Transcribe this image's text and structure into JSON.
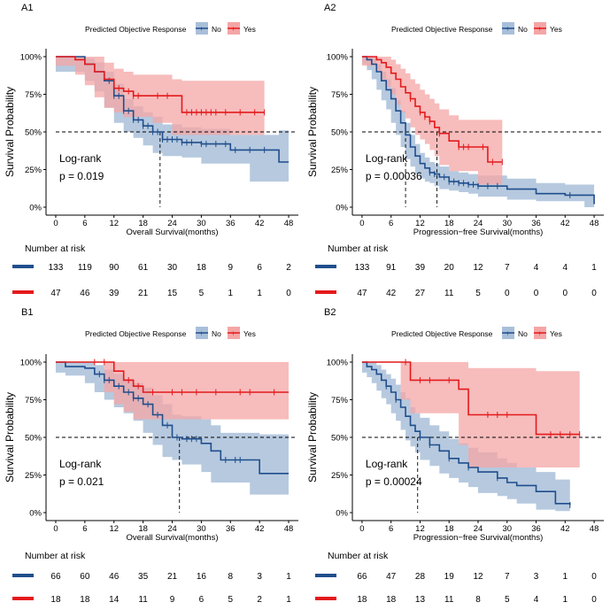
{
  "colors": {
    "no": "#1f4e8c",
    "yes": "#e41a1c",
    "no_band": "#a9bfd9",
    "yes_band": "#f4a6a6"
  },
  "legend": {
    "title": "Predicted Objective Response",
    "no": "No",
    "yes": "Yes"
  },
  "risk_title": "Number at risk",
  "chart_data": [
    {
      "panel": "A1",
      "type": "line",
      "ylabel": "Survival Probability",
      "xlabel": "Overall Survival(months)",
      "xlim": [
        -2,
        50
      ],
      "xticks": [
        0,
        6,
        12,
        18,
        24,
        30,
        36,
        42,
        48
      ],
      "ylim": [
        0,
        1
      ],
      "yticks": [
        "0%",
        "25%",
        "50%",
        "75%",
        "100%"
      ],
      "logrank": "Log-rank",
      "pvalue": "p = 0.019",
      "median_no": 21.5,
      "series": [
        {
          "name": "No",
          "x": [
            0,
            6,
            8,
            10,
            12,
            14,
            16,
            18,
            20,
            22,
            26,
            30,
            36,
            40,
            46,
            48
          ],
          "y": [
            1,
            0.95,
            0.9,
            0.84,
            0.74,
            0.64,
            0.58,
            0.54,
            0.5,
            0.45,
            0.43,
            0.42,
            0.38,
            0.38,
            0.3,
            0.3
          ],
          "lo": [
            1,
            0.9,
            0.84,
            0.77,
            0.66,
            0.56,
            0.5,
            0.46,
            0.41,
            0.36,
            0.34,
            0.33,
            0.29,
            0.29,
            0.17,
            0.17
          ],
          "hi": [
            1,
            0.99,
            0.96,
            0.9,
            0.82,
            0.72,
            0.67,
            0.63,
            0.6,
            0.55,
            0.53,
            0.52,
            0.48,
            0.48,
            0.51,
            0.51
          ],
          "censor_x": [
            11,
            12,
            13,
            14,
            15,
            16,
            17,
            18,
            19,
            20,
            21,
            22,
            23,
            24,
            25,
            26,
            27,
            28,
            30,
            31,
            33,
            35,
            37,
            40,
            43
          ]
        },
        {
          "name": "Yes",
          "x": [
            0,
            4,
            6,
            8,
            10,
            12,
            14,
            16,
            20,
            24,
            26,
            30,
            36,
            40,
            43
          ],
          "y": [
            1,
            0.98,
            0.95,
            0.9,
            0.85,
            0.79,
            0.77,
            0.74,
            0.74,
            0.74,
            0.63,
            0.63,
            0.63,
            0.63,
            0.63
          ],
          "lo": [
            1,
            0.94,
            0.88,
            0.81,
            0.73,
            0.66,
            0.63,
            0.6,
            0.6,
            0.56,
            0.48,
            0.48,
            0.48,
            0.48,
            0.48
          ],
          "hi": [
            1,
            1,
            1,
            1,
            0.96,
            0.92,
            0.9,
            0.88,
            0.88,
            0.85,
            0.84,
            0.84,
            0.84,
            0.84,
            0.84
          ],
          "censor_x": [
            13,
            15,
            16,
            17,
            21,
            23,
            27,
            28,
            29,
            30,
            31,
            32,
            33,
            35,
            38,
            41,
            43
          ]
        }
      ],
      "risk": {
        "no": [
          "133",
          "119",
          "90",
          "61",
          "30",
          "18",
          "9",
          "6",
          "2"
        ],
        "yes": [
          "47",
          "46",
          "39",
          "21",
          "15",
          "5",
          "1",
          "1",
          "0"
        ]
      }
    },
    {
      "panel": "A2",
      "type": "line",
      "ylabel": "Survival Probability",
      "xlabel": "Progression−free Survival(months)",
      "xlim": [
        -2,
        50
      ],
      "xticks": [
        0,
        6,
        12,
        18,
        24,
        30,
        36,
        42,
        48
      ],
      "ylim": [
        0,
        1
      ],
      "yticks": [
        "0%",
        "25%",
        "50%",
        "75%",
        "100%"
      ],
      "logrank": "Log-rank",
      "pvalue": "p = 0.00036",
      "median_no": 9.0,
      "median_yes": 15.5,
      "series": [
        {
          "name": "No",
          "x": [
            0,
            1,
            2,
            3,
            4,
            5,
            6,
            7,
            8,
            9,
            10,
            11,
            12,
            13,
            14,
            15,
            16,
            18,
            20,
            22,
            24,
            30,
            36,
            42,
            46,
            48
          ],
          "y": [
            1,
            0.98,
            0.95,
            0.9,
            0.84,
            0.78,
            0.72,
            0.64,
            0.56,
            0.48,
            0.4,
            0.34,
            0.29,
            0.26,
            0.23,
            0.22,
            0.2,
            0.17,
            0.16,
            0.15,
            0.14,
            0.12,
            0.09,
            0.08,
            0.08,
            0.02
          ],
          "lo": [
            1,
            0.95,
            0.91,
            0.85,
            0.78,
            0.71,
            0.65,
            0.56,
            0.48,
            0.4,
            0.32,
            0.27,
            0.22,
            0.19,
            0.17,
            0.16,
            0.14,
            0.12,
            0.11,
            0.1,
            0.09,
            0.07,
            0.05,
            0.04,
            0.04,
            0
          ],
          "hi": [
            1,
            1,
            0.99,
            0.95,
            0.9,
            0.85,
            0.79,
            0.71,
            0.64,
            0.56,
            0.48,
            0.42,
            0.36,
            0.33,
            0.3,
            0.29,
            0.27,
            0.24,
            0.23,
            0.22,
            0.21,
            0.19,
            0.16,
            0.15,
            0.15,
            0.1
          ],
          "censor_x": [
            14,
            15,
            17,
            18,
            19,
            20,
            21,
            22,
            23,
            24,
            26,
            28,
            43
          ]
        },
        {
          "name": "Yes",
          "x": [
            0,
            3,
            4,
            5,
            6,
            7,
            8,
            9,
            10,
            11,
            12,
            13,
            14,
            15,
            16,
            18,
            20,
            22,
            24,
            26,
            29
          ],
          "y": [
            1,
            0.98,
            0.96,
            0.93,
            0.89,
            0.85,
            0.8,
            0.76,
            0.72,
            0.67,
            0.63,
            0.6,
            0.57,
            0.53,
            0.49,
            0.44,
            0.4,
            0.4,
            0.4,
            0.3,
            0.3
          ],
          "lo": [
            1,
            0.94,
            0.9,
            0.85,
            0.8,
            0.75,
            0.68,
            0.63,
            0.59,
            0.53,
            0.48,
            0.45,
            0.42,
            0.38,
            0.34,
            0.28,
            0.24,
            0.24,
            0.24,
            0.15,
            0.15
          ],
          "hi": [
            1,
            1,
            1,
            1,
            0.98,
            0.95,
            0.92,
            0.89,
            0.85,
            0.82,
            0.78,
            0.75,
            0.72,
            0.69,
            0.65,
            0.61,
            0.58,
            0.58,
            0.58,
            0.58,
            0.58
          ],
          "censor_x": [
            10,
            12,
            13,
            14,
            16,
            20,
            21,
            22,
            25,
            27,
            29
          ]
        }
      ],
      "risk": {
        "no": [
          "133",
          "91",
          "39",
          "20",
          "12",
          "7",
          "4",
          "4",
          "1"
        ],
        "yes": [
          "47",
          "42",
          "27",
          "11",
          "5",
          "0",
          "0",
          "0",
          "0"
        ]
      }
    },
    {
      "panel": "B1",
      "type": "line",
      "ylabel": "Survival Probability",
      "xlabel": "Overall Survival(months)",
      "xlim": [
        -2,
        50
      ],
      "xticks": [
        0,
        6,
        12,
        18,
        24,
        30,
        36,
        42,
        48
      ],
      "ylim": [
        0,
        1
      ],
      "yticks": [
        "0%",
        "25%",
        "50%",
        "75%",
        "100%"
      ],
      "logrank": "Log-rank",
      "pvalue": "p = 0.021",
      "median_no": 25.5,
      "series": [
        {
          "name": "No",
          "x": [
            0,
            2,
            6,
            8,
            10,
            12,
            14,
            16,
            18,
            20,
            22,
            24,
            26,
            30,
            32,
            34,
            36,
            40,
            42,
            48
          ],
          "y": [
            1,
            0.97,
            0.96,
            0.92,
            0.88,
            0.84,
            0.8,
            0.76,
            0.72,
            0.65,
            0.58,
            0.5,
            0.49,
            0.46,
            0.41,
            0.35,
            0.35,
            0.35,
            0.26,
            0.26
          ],
          "lo": [
            1,
            0.93,
            0.91,
            0.86,
            0.8,
            0.75,
            0.7,
            0.66,
            0.61,
            0.53,
            0.45,
            0.37,
            0.35,
            0.32,
            0.27,
            0.2,
            0.2,
            0.2,
            0.12,
            0.12
          ],
          "hi": [
            1,
            1,
            1,
            0.98,
            0.95,
            0.92,
            0.89,
            0.86,
            0.83,
            0.78,
            0.72,
            0.65,
            0.64,
            0.62,
            0.58,
            0.53,
            0.53,
            0.53,
            0.52,
            0.52
          ],
          "censor_x": [
            9,
            10,
            11,
            13,
            15,
            16,
            17,
            19,
            21,
            23,
            25,
            27,
            28,
            29,
            35,
            37,
            38
          ]
        },
        {
          "name": "Yes",
          "x": [
            0,
            10,
            12,
            14,
            16,
            18,
            48
          ],
          "y": [
            1,
            1,
            0.94,
            0.88,
            0.84,
            0.8,
            0.8
          ],
          "lo": [
            1,
            1,
            0.8,
            0.72,
            0.67,
            0.62,
            0.62
          ],
          "hi": [
            1,
            1,
            1,
            1,
            1,
            1,
            1
          ],
          "censor_x": [
            8,
            10,
            15,
            17,
            20,
            24,
            26,
            29,
            33,
            38,
            40,
            45
          ]
        }
      ],
      "risk": {
        "no": [
          "66",
          "60",
          "46",
          "35",
          "21",
          "16",
          "8",
          "3",
          "1"
        ],
        "yes": [
          "18",
          "18",
          "14",
          "11",
          "9",
          "6",
          "5",
          "2",
          "1"
        ]
      }
    },
    {
      "panel": "B2",
      "type": "line",
      "ylabel": "Survival Probability",
      "xlabel": "Progression−free Survival(months)",
      "xlim": [
        -2,
        50
      ],
      "xticks": [
        0,
        6,
        12,
        18,
        24,
        30,
        36,
        42,
        48
      ],
      "ylim": [
        0,
        1
      ],
      "yticks": [
        "0%",
        "25%",
        "50%",
        "75%",
        "100%"
      ],
      "logrank": "Log-rank",
      "pvalue": "p = 0.00024",
      "median_no": 11.5,
      "series": [
        {
          "name": "No",
          "x": [
            0,
            1,
            2,
            3,
            4,
            5,
            6,
            7,
            8,
            9,
            10,
            11,
            12,
            14,
            16,
            18,
            20,
            22,
            24,
            28,
            30,
            32,
            36,
            40,
            43
          ],
          "y": [
            1,
            0.97,
            0.95,
            0.92,
            0.88,
            0.84,
            0.8,
            0.75,
            0.7,
            0.64,
            0.58,
            0.54,
            0.5,
            0.45,
            0.41,
            0.36,
            0.33,
            0.3,
            0.27,
            0.23,
            0.2,
            0.18,
            0.14,
            0.06,
            0.05
          ],
          "lo": [
            1,
            0.93,
            0.9,
            0.86,
            0.81,
            0.76,
            0.72,
            0.66,
            0.61,
            0.55,
            0.48,
            0.44,
            0.4,
            0.35,
            0.31,
            0.26,
            0.23,
            0.2,
            0.17,
            0.13,
            0.11,
            0.09,
            0.06,
            0.02,
            0.01
          ],
          "hi": [
            1,
            1,
            1,
            0.98,
            0.95,
            0.92,
            0.89,
            0.85,
            0.8,
            0.76,
            0.7,
            0.66,
            0.63,
            0.58,
            0.54,
            0.49,
            0.46,
            0.43,
            0.4,
            0.36,
            0.33,
            0.3,
            0.27,
            0.22,
            0.2
          ],
          "censor_x": [
            5,
            7,
            12,
            14,
            18,
            22,
            28,
            43
          ]
        },
        {
          "name": "Yes",
          "x": [
            0,
            8,
            10,
            20,
            22,
            36,
            45
          ],
          "y": [
            1,
            1,
            0.88,
            0.82,
            0.65,
            0.52,
            0.52
          ],
          "lo": [
            1,
            1,
            0.75,
            0.66,
            0.45,
            0.3,
            0.3
          ],
          "hi": [
            1,
            1,
            1,
            1,
            0.96,
            0.94,
            0.94
          ],
          "censor_x": [
            9,
            12,
            14,
            18,
            26,
            28,
            30,
            39,
            41,
            43,
            45
          ]
        }
      ],
      "risk": {
        "no": [
          "66",
          "47",
          "28",
          "19",
          "12",
          "7",
          "3",
          "1",
          "0"
        ],
        "yes": [
          "18",
          "18",
          "13",
          "11",
          "8",
          "5",
          "4",
          "1",
          "0"
        ]
      }
    }
  ]
}
